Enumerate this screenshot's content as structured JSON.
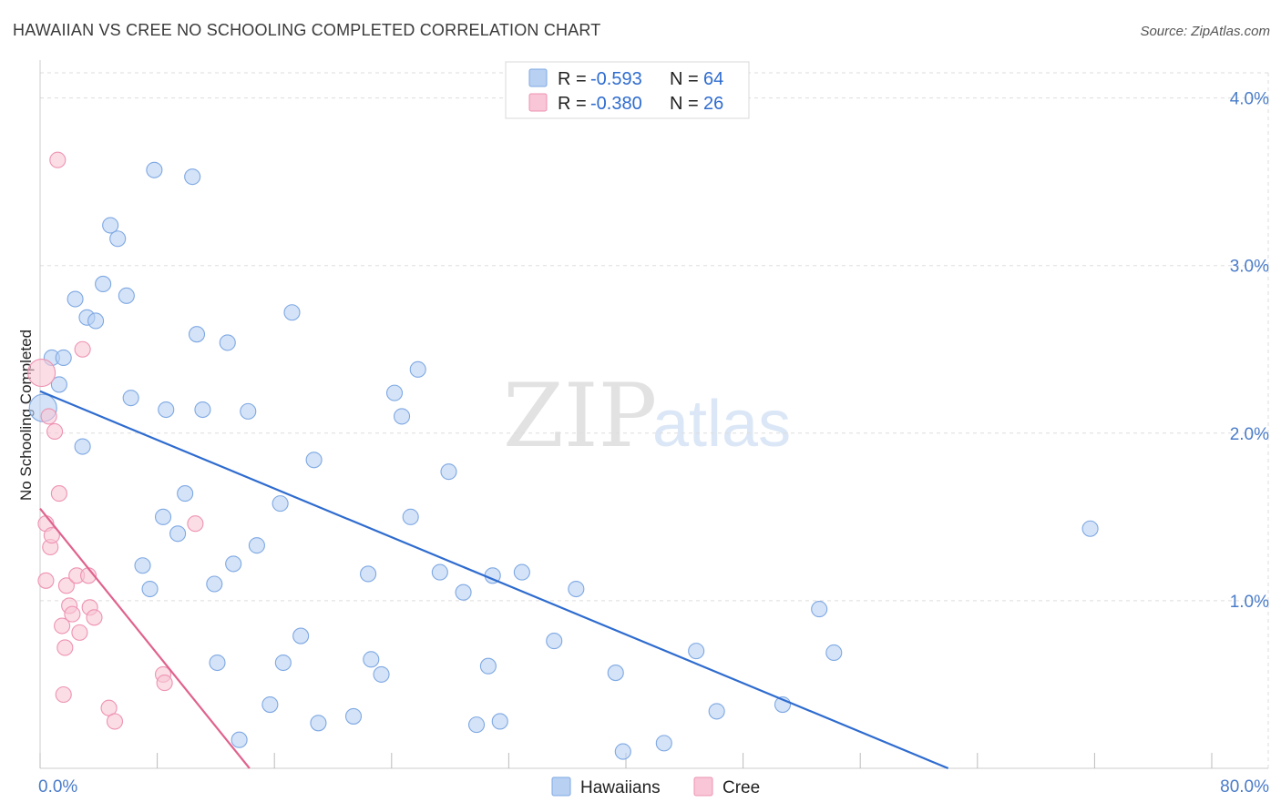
{
  "title": "HAWAIIAN VS CREE NO SCHOOLING COMPLETED CORRELATION CHART",
  "source": "Source: ZipAtlas.com",
  "watermark": {
    "zip": "ZIP",
    "atlas": "atlas"
  },
  "colors": {
    "hawaiians_fill": "#b8d0f2",
    "hawaiians_stroke": "#7ea8e3",
    "hawaiians_line": "#2f6ccf",
    "cree_fill": "#f8c6d6",
    "cree_stroke": "#ee93b1",
    "cree_line": "#e0628e",
    "grid": "#dddddd",
    "axis_text": "#4a7cc9"
  },
  "legend": {
    "rows": [
      {
        "r_label": "R =",
        "r_value": "-0.593",
        "n_label": "N =",
        "n_value": "64"
      },
      {
        "r_label": "R =",
        "r_value": "-0.380",
        "n_label": "N =",
        "n_value": "26"
      }
    ]
  },
  "bottom_legend": [
    "Hawaiians",
    "Cree"
  ],
  "chart_data": {
    "type": "scatter",
    "title": "HAWAIIAN VS CREE NO SCHOOLING COMPLETED CORRELATION CHART",
    "xlabel": "",
    "ylabel": "No Schooling Completed",
    "xlim": [
      0,
      80
    ],
    "ylim": [
      0,
      4.15
    ],
    "x_tick_labels": [
      "0.0%",
      "80.0%"
    ],
    "y_ticks": [
      1.0,
      2.0,
      3.0,
      4.0
    ],
    "y_tick_labels": [
      "1.0%",
      "2.0%",
      "3.0%",
      "4.0%"
    ],
    "grid": true,
    "legend_position": "top-center",
    "series": [
      {
        "name": "Hawaiians",
        "r": -0.593,
        "n": 64,
        "trend": {
          "x": [
            0,
            62.0
          ],
          "y": [
            2.25,
            0.0
          ]
        },
        "points": [
          {
            "x": 0.2,
            "y": 2.15,
            "big": true
          },
          {
            "x": 0.8,
            "y": 2.45
          },
          {
            "x": 1.6,
            "y": 2.45
          },
          {
            "x": 1.3,
            "y": 2.29
          },
          {
            "x": 2.9,
            "y": 1.92
          },
          {
            "x": 2.4,
            "y": 2.8
          },
          {
            "x": 3.2,
            "y": 2.69
          },
          {
            "x": 3.8,
            "y": 2.67
          },
          {
            "x": 4.3,
            "y": 2.89
          },
          {
            "x": 4.8,
            "y": 3.24
          },
          {
            "x": 5.3,
            "y": 3.16
          },
          {
            "x": 5.9,
            "y": 2.82
          },
          {
            "x": 6.2,
            "y": 2.21
          },
          {
            "x": 7.0,
            "y": 1.21
          },
          {
            "x": 7.5,
            "y": 1.07
          },
          {
            "x": 7.8,
            "y": 3.57
          },
          {
            "x": 8.4,
            "y": 1.5
          },
          {
            "x": 8.6,
            "y": 2.14
          },
          {
            "x": 9.4,
            "y": 1.4
          },
          {
            "x": 9.9,
            "y": 1.64
          },
          {
            "x": 10.4,
            "y": 3.53
          },
          {
            "x": 10.7,
            "y": 2.59
          },
          {
            "x": 11.1,
            "y": 2.14
          },
          {
            "x": 11.9,
            "y": 1.1
          },
          {
            "x": 12.1,
            "y": 0.63
          },
          {
            "x": 12.8,
            "y": 2.54
          },
          {
            "x": 13.2,
            "y": 1.22
          },
          {
            "x": 13.6,
            "y": 0.17
          },
          {
            "x": 14.2,
            "y": 2.13
          },
          {
            "x": 14.8,
            "y": 1.33
          },
          {
            "x": 15.7,
            "y": 0.38
          },
          {
            "x": 16.4,
            "y": 1.58
          },
          {
            "x": 16.6,
            "y": 0.63
          },
          {
            "x": 17.2,
            "y": 2.72
          },
          {
            "x": 17.8,
            "y": 0.79
          },
          {
            "x": 18.7,
            "y": 1.84
          },
          {
            "x": 19.0,
            "y": 0.27
          },
          {
            "x": 21.4,
            "y": 0.31
          },
          {
            "x": 22.4,
            "y": 1.16
          },
          {
            "x": 22.6,
            "y": 0.65
          },
          {
            "x": 23.3,
            "y": 0.56
          },
          {
            "x": 24.2,
            "y": 2.24
          },
          {
            "x": 24.7,
            "y": 2.1
          },
          {
            "x": 25.3,
            "y": 1.5
          },
          {
            "x": 25.8,
            "y": 2.38
          },
          {
            "x": 27.3,
            "y": 1.17
          },
          {
            "x": 27.9,
            "y": 1.77
          },
          {
            "x": 28.9,
            "y": 1.05
          },
          {
            "x": 29.8,
            "y": 0.26
          },
          {
            "x": 30.6,
            "y": 0.61
          },
          {
            "x": 30.9,
            "y": 1.15
          },
          {
            "x": 31.4,
            "y": 0.28
          },
          {
            "x": 32.9,
            "y": 1.17
          },
          {
            "x": 35.1,
            "y": 0.76
          },
          {
            "x": 36.6,
            "y": 1.07
          },
          {
            "x": 39.3,
            "y": 0.57
          },
          {
            "x": 39.8,
            "y": 0.1
          },
          {
            "x": 42.6,
            "y": 0.15
          },
          {
            "x": 44.8,
            "y": 0.7
          },
          {
            "x": 46.2,
            "y": 0.34
          },
          {
            "x": 50.7,
            "y": 0.38
          },
          {
            "x": 53.2,
            "y": 0.95
          },
          {
            "x": 54.2,
            "y": 0.69
          },
          {
            "x": 71.7,
            "y": 1.43
          }
        ]
      },
      {
        "name": "Cree",
        "r": -0.38,
        "n": 26,
        "trend": {
          "x": [
            0,
            14.3
          ],
          "y": [
            1.55,
            0.0
          ]
        },
        "points": [
          {
            "x": 0.1,
            "y": 2.36,
            "big": true
          },
          {
            "x": 0.4,
            "y": 1.46
          },
          {
            "x": 0.4,
            "y": 1.12
          },
          {
            "x": 0.6,
            "y": 2.1
          },
          {
            "x": 0.7,
            "y": 1.32
          },
          {
            "x": 0.8,
            "y": 1.39
          },
          {
            "x": 1.0,
            "y": 2.01
          },
          {
            "x": 1.2,
            "y": 3.63
          },
          {
            "x": 1.3,
            "y": 1.64
          },
          {
            "x": 1.5,
            "y": 0.85
          },
          {
            "x": 1.6,
            "y": 0.44
          },
          {
            "x": 1.7,
            "y": 0.72
          },
          {
            "x": 1.8,
            "y": 1.09
          },
          {
            "x": 2.0,
            "y": 0.97
          },
          {
            "x": 2.2,
            "y": 0.92
          },
          {
            "x": 2.5,
            "y": 1.15
          },
          {
            "x": 2.7,
            "y": 0.81
          },
          {
            "x": 2.9,
            "y": 2.5
          },
          {
            "x": 3.3,
            "y": 1.15
          },
          {
            "x": 3.4,
            "y": 0.96
          },
          {
            "x": 3.7,
            "y": 0.9
          },
          {
            "x": 4.7,
            "y": 0.36
          },
          {
            "x": 5.1,
            "y": 0.28
          },
          {
            "x": 8.4,
            "y": 0.56
          },
          {
            "x": 8.5,
            "y": 0.51
          },
          {
            "x": 10.6,
            "y": 1.46
          }
        ]
      }
    ]
  }
}
